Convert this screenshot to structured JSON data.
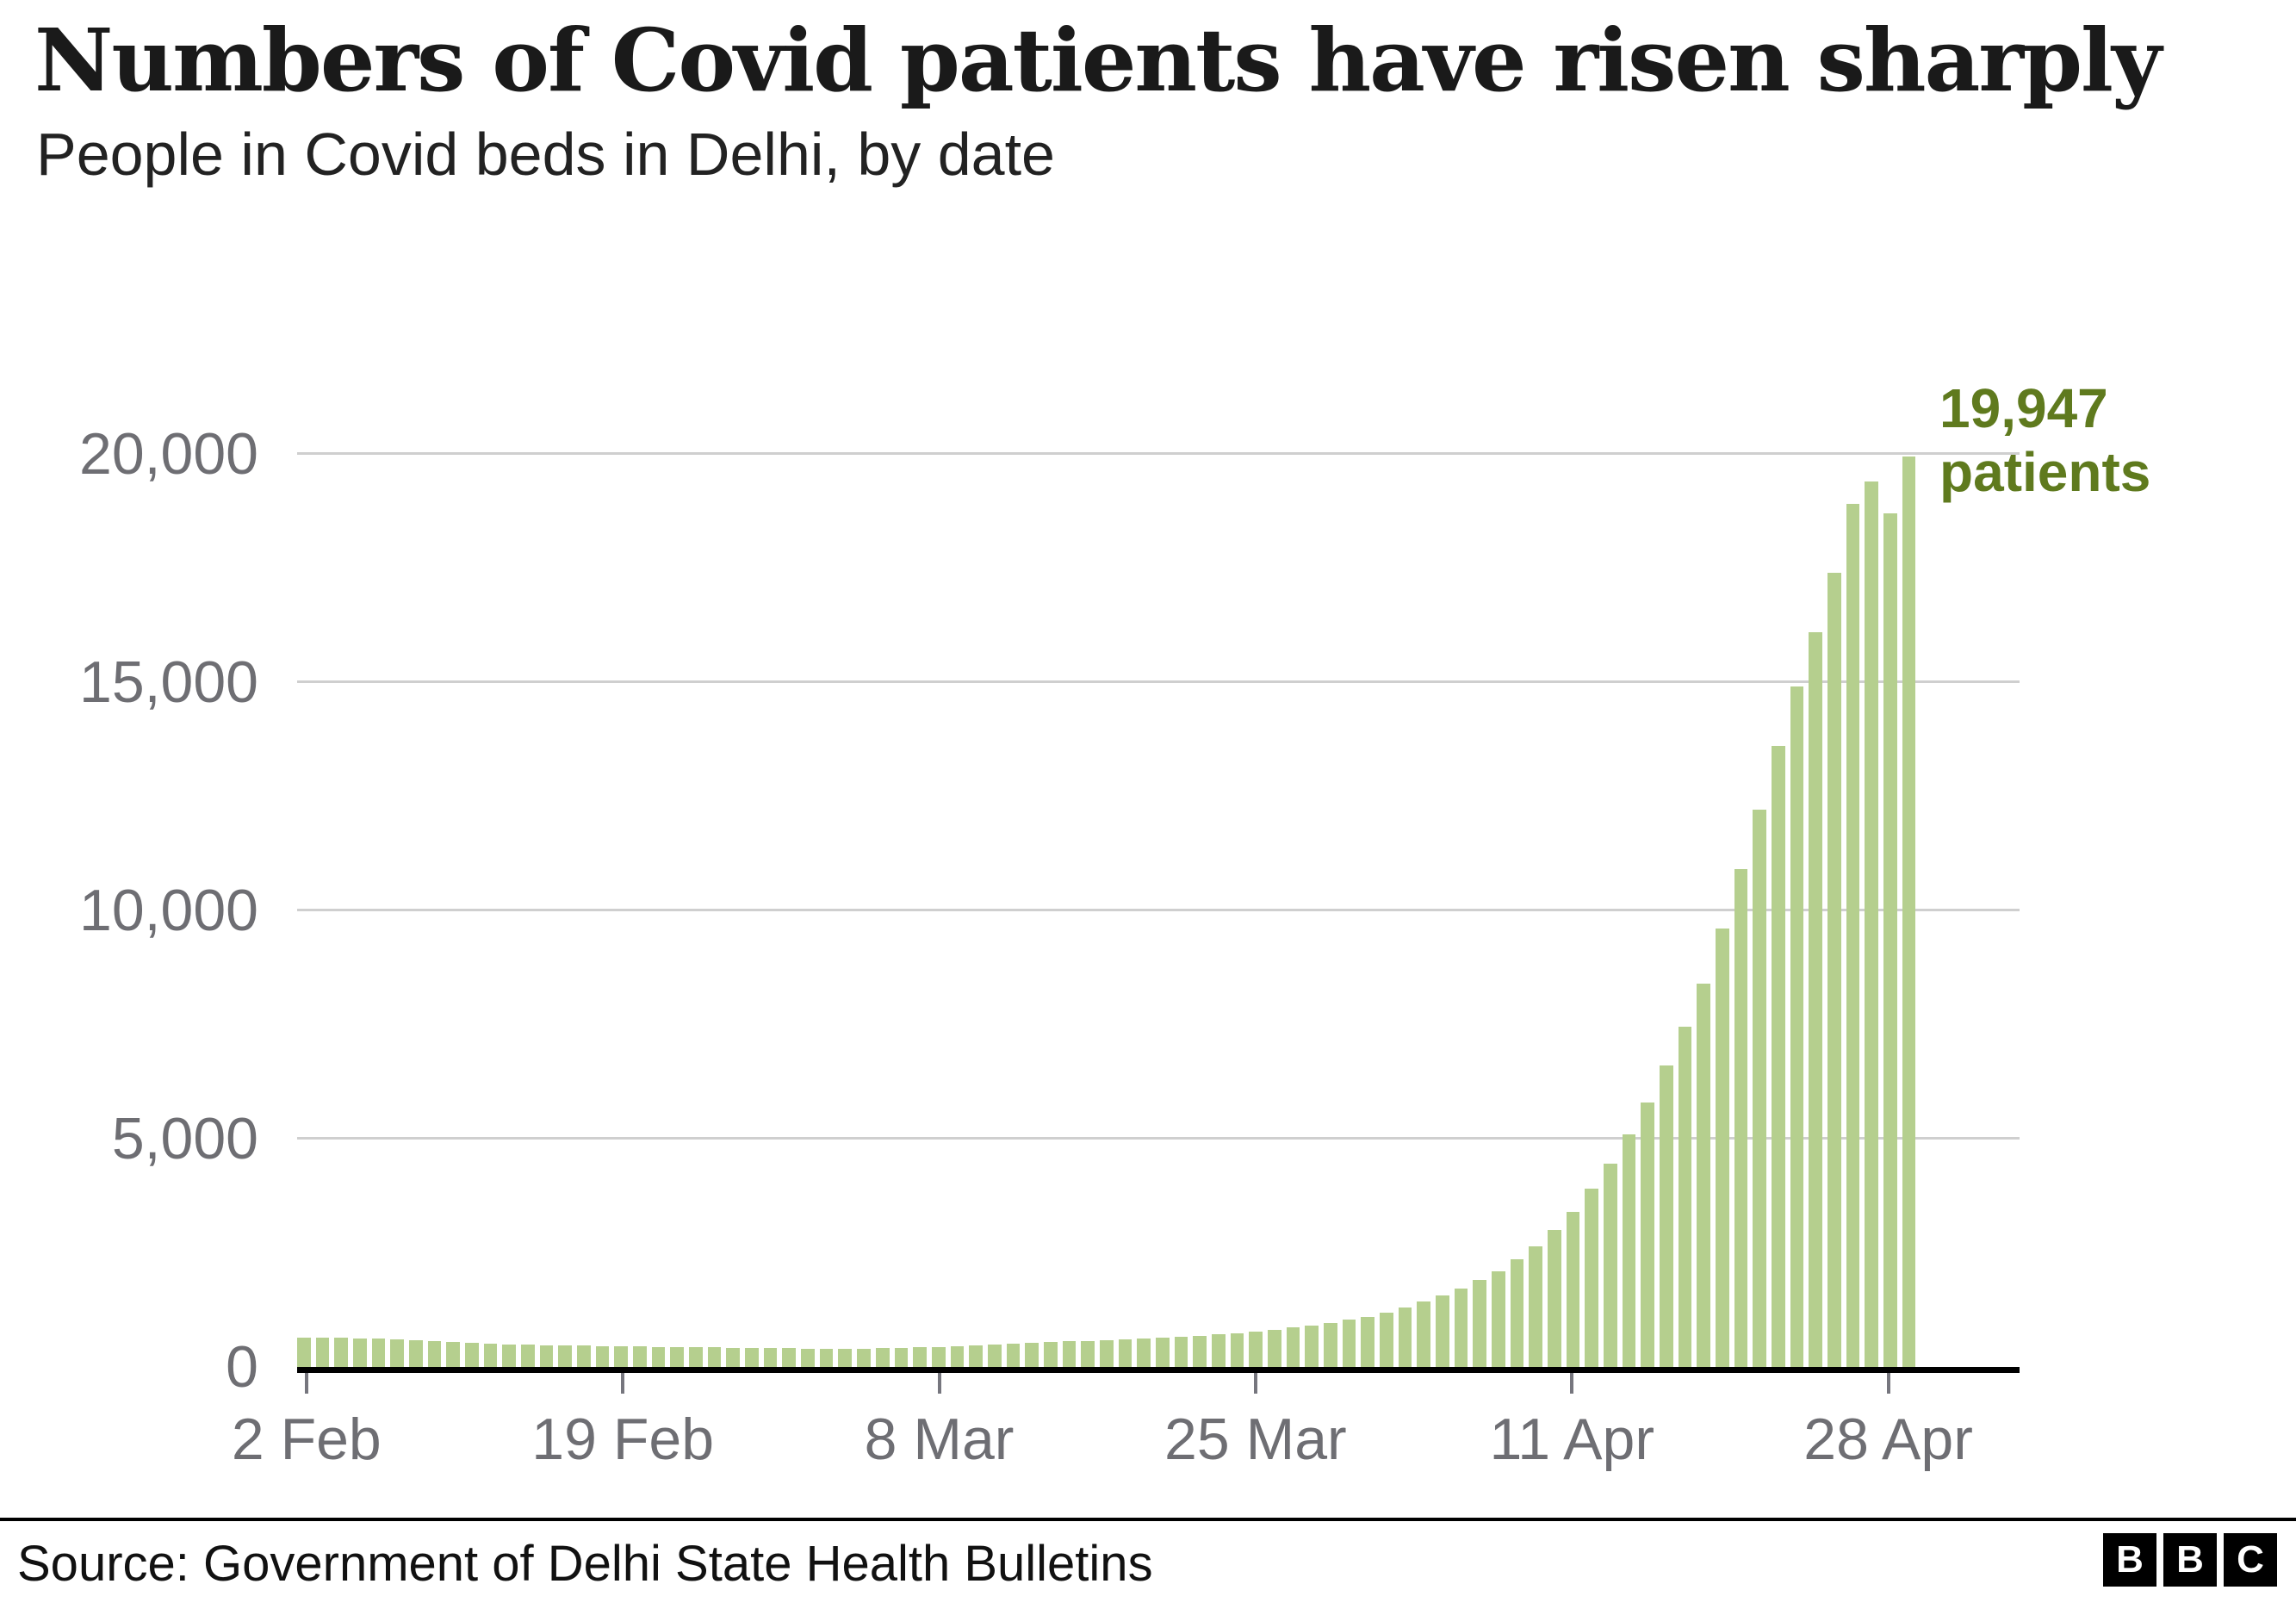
{
  "header": {
    "title": "Numbers of Covid patients have risen sharply",
    "subtitle": "People in Covid beds in Delhi, by date"
  },
  "annotation": {
    "line1": "19,947",
    "line2": "patients"
  },
  "footer": {
    "source": "Source: Government of Delhi State Health Bulletins",
    "logo_letters": [
      "B",
      "B",
      "C"
    ]
  },
  "colors": {
    "bar": "#b5cf8e",
    "annotation_green": "#5f7a1e",
    "grid": "#cfcfcf",
    "axis": "#000000",
    "tick_label": "#6e6e73"
  },
  "chart_data": {
    "type": "bar",
    "title": "Numbers of Covid patients have risen sharply",
    "subtitle": "People in Covid beds in Delhi, by date",
    "xlabel": "",
    "ylabel": "",
    "ylim": [
      0,
      20000
    ],
    "grid": "horizontal",
    "legend": "none",
    "yticks": [
      0,
      5000,
      10000,
      15000,
      20000
    ],
    "ytick_labels": [
      "0",
      "5,000",
      "10,000",
      "15,000",
      "20,000"
    ],
    "xtick_labels": [
      "2 Feb",
      "19 Feb",
      "8 Mar",
      "25 Mar",
      "11 Apr",
      "28 Apr"
    ],
    "xtick_indices": [
      0,
      17,
      34,
      51,
      68,
      85
    ],
    "annotation_text": "19,947 patients",
    "dates": [
      "2 Feb",
      "3 Feb",
      "4 Feb",
      "5 Feb",
      "6 Feb",
      "7 Feb",
      "8 Feb",
      "9 Feb",
      "10 Feb",
      "11 Feb",
      "12 Feb",
      "13 Feb",
      "14 Feb",
      "15 Feb",
      "16 Feb",
      "17 Feb",
      "18 Feb",
      "19 Feb",
      "20 Feb",
      "21 Feb",
      "22 Feb",
      "23 Feb",
      "24 Feb",
      "25 Feb",
      "26 Feb",
      "27 Feb",
      "28 Feb",
      "1 Mar",
      "2 Mar",
      "3 Mar",
      "4 Mar",
      "5 Mar",
      "6 Mar",
      "7 Mar",
      "8 Mar",
      "9 Mar",
      "10 Mar",
      "11 Mar",
      "12 Mar",
      "13 Mar",
      "14 Mar",
      "15 Mar",
      "16 Mar",
      "17 Mar",
      "18 Mar",
      "19 Mar",
      "20 Mar",
      "21 Mar",
      "22 Mar",
      "23 Mar",
      "24 Mar",
      "25 Mar",
      "26 Mar",
      "27 Mar",
      "28 Mar",
      "29 Mar",
      "30 Mar",
      "31 Mar",
      "1 Apr",
      "2 Apr",
      "3 Apr",
      "4 Apr",
      "5 Apr",
      "6 Apr",
      "7 Apr",
      "8 Apr",
      "9 Apr",
      "10 Apr",
      "11 Apr",
      "12 Apr",
      "13 Apr",
      "14 Apr",
      "15 Apr",
      "16 Apr",
      "17 Apr",
      "18 Apr",
      "19 Apr",
      "20 Apr",
      "21 Apr",
      "22 Apr",
      "23 Apr",
      "24 Apr",
      "25 Apr",
      "26 Apr",
      "27 Apr",
      "28 Apr",
      "29 Apr"
    ],
    "values": [
      640,
      650,
      645,
      630,
      615,
      600,
      580,
      560,
      545,
      530,
      515,
      500,
      490,
      480,
      470,
      465,
      455,
      450,
      445,
      440,
      435,
      430,
      425,
      420,
      420,
      415,
      410,
      405,
      400,
      400,
      405,
      410,
      420,
      430,
      440,
      455,
      470,
      490,
      510,
      530,
      545,
      560,
      570,
      585,
      600,
      615,
      635,
      660,
      685,
      710,
      740,
      775,
      815,
      860,
      910,
      965,
      1030,
      1100,
      1190,
      1300,
      1430,
      1570,
      1720,
      1900,
      2100,
      2350,
      2650,
      3000,
      3400,
      3900,
      4450,
      5100,
      5800,
      6600,
      7450,
      8400,
      9600,
      10900,
      12200,
      13600,
      14900,
      16100,
      17400,
      18900,
      19400,
      18700,
      19947
    ]
  }
}
